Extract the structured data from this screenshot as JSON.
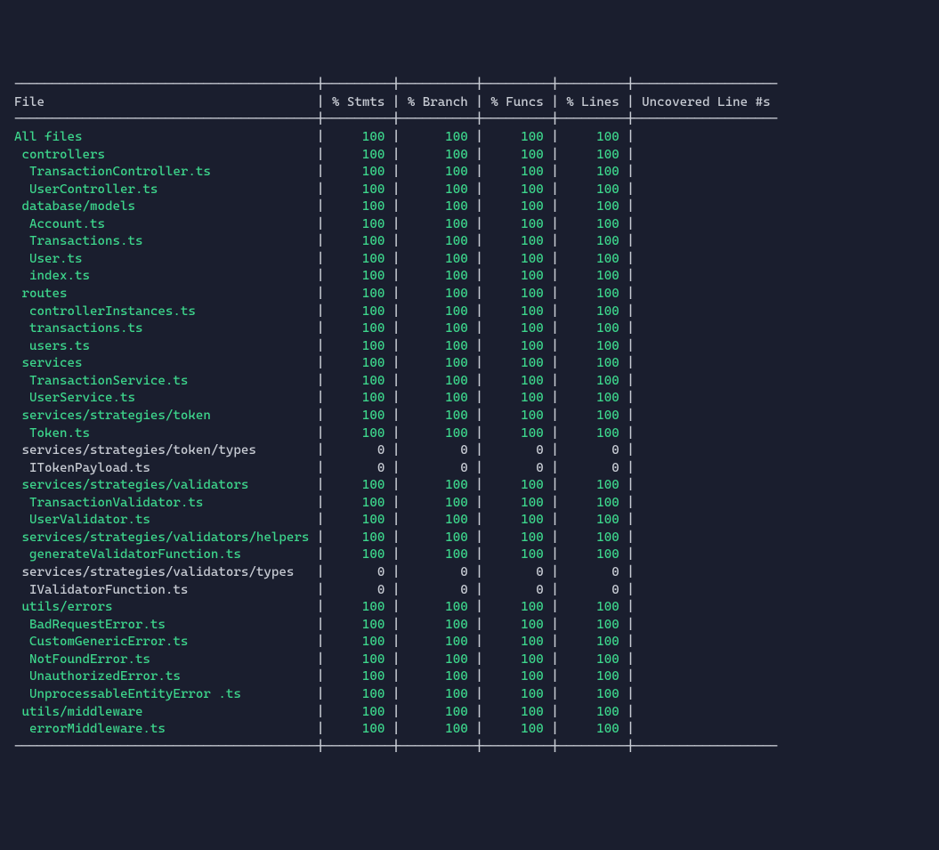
{
  "colors": {
    "background": "#1a1e2e",
    "text": "#c8ccd4",
    "highlight": "#3dd68c"
  },
  "layout": {
    "col_file_width": 40,
    "col_stmts_width": 9,
    "col_branch_width": 10,
    "col_funcs_width": 9,
    "col_lines_width": 9,
    "col_uncovered_width": 19
  },
  "headers": {
    "file": "File",
    "stmts": "% Stmts",
    "branch": "% Branch",
    "funcs": "% Funcs",
    "lines": "% Lines",
    "uncovered": "Uncovered Line #s"
  },
  "rows": [
    {
      "indent": 0,
      "file": "All files",
      "stmts": "100",
      "branch": "100",
      "funcs": "100",
      "lines": "100",
      "color": "green"
    },
    {
      "indent": 1,
      "file": "controllers",
      "stmts": "100",
      "branch": "100",
      "funcs": "100",
      "lines": "100",
      "color": "green"
    },
    {
      "indent": 2,
      "file": "TransactionController.ts",
      "stmts": "100",
      "branch": "100",
      "funcs": "100",
      "lines": "100",
      "color": "green"
    },
    {
      "indent": 2,
      "file": "UserController.ts",
      "stmts": "100",
      "branch": "100",
      "funcs": "100",
      "lines": "100",
      "color": "green"
    },
    {
      "indent": 1,
      "file": "database/models",
      "stmts": "100",
      "branch": "100",
      "funcs": "100",
      "lines": "100",
      "color": "green"
    },
    {
      "indent": 2,
      "file": "Account.ts",
      "stmts": "100",
      "branch": "100",
      "funcs": "100",
      "lines": "100",
      "color": "green"
    },
    {
      "indent": 2,
      "file": "Transactions.ts",
      "stmts": "100",
      "branch": "100",
      "funcs": "100",
      "lines": "100",
      "color": "green"
    },
    {
      "indent": 2,
      "file": "User.ts",
      "stmts": "100",
      "branch": "100",
      "funcs": "100",
      "lines": "100",
      "color": "green"
    },
    {
      "indent": 2,
      "file": "index.ts",
      "stmts": "100",
      "branch": "100",
      "funcs": "100",
      "lines": "100",
      "color": "green"
    },
    {
      "indent": 1,
      "file": "routes",
      "stmts": "100",
      "branch": "100",
      "funcs": "100",
      "lines": "100",
      "color": "green"
    },
    {
      "indent": 2,
      "file": "controllerInstances.ts",
      "stmts": "100",
      "branch": "100",
      "funcs": "100",
      "lines": "100",
      "color": "green"
    },
    {
      "indent": 2,
      "file": "transactions.ts",
      "stmts": "100",
      "branch": "100",
      "funcs": "100",
      "lines": "100",
      "color": "green"
    },
    {
      "indent": 2,
      "file": "users.ts",
      "stmts": "100",
      "branch": "100",
      "funcs": "100",
      "lines": "100",
      "color": "green"
    },
    {
      "indent": 1,
      "file": "services",
      "stmts": "100",
      "branch": "100",
      "funcs": "100",
      "lines": "100",
      "color": "green"
    },
    {
      "indent": 2,
      "file": "TransactionService.ts",
      "stmts": "100",
      "branch": "100",
      "funcs": "100",
      "lines": "100",
      "color": "green"
    },
    {
      "indent": 2,
      "file": "UserService.ts",
      "stmts": "100",
      "branch": "100",
      "funcs": "100",
      "lines": "100",
      "color": "green"
    },
    {
      "indent": 1,
      "file": "services/strategies/token",
      "stmts": "100",
      "branch": "100",
      "funcs": "100",
      "lines": "100",
      "color": "green"
    },
    {
      "indent": 2,
      "file": "Token.ts",
      "stmts": "100",
      "branch": "100",
      "funcs": "100",
      "lines": "100",
      "color": "green"
    },
    {
      "indent": 1,
      "file": "services/strategies/token/types",
      "stmts": "0",
      "branch": "0",
      "funcs": "0",
      "lines": "0",
      "color": "white"
    },
    {
      "indent": 2,
      "file": "ITokenPayload.ts",
      "stmts": "0",
      "branch": "0",
      "funcs": "0",
      "lines": "0",
      "color": "white"
    },
    {
      "indent": 1,
      "file": "services/strategies/validators",
      "stmts": "100",
      "branch": "100",
      "funcs": "100",
      "lines": "100",
      "color": "green"
    },
    {
      "indent": 2,
      "file": "TransactionValidator.ts",
      "stmts": "100",
      "branch": "100",
      "funcs": "100",
      "lines": "100",
      "color": "green"
    },
    {
      "indent": 2,
      "file": "UserValidator.ts",
      "stmts": "100",
      "branch": "100",
      "funcs": "100",
      "lines": "100",
      "color": "green"
    },
    {
      "indent": 1,
      "file": "services/strategies/validators/helpers",
      "stmts": "100",
      "branch": "100",
      "funcs": "100",
      "lines": "100",
      "color": "green"
    },
    {
      "indent": 2,
      "file": "generateValidatorFunction.ts",
      "stmts": "100",
      "branch": "100",
      "funcs": "100",
      "lines": "100",
      "color": "green"
    },
    {
      "indent": 1,
      "file": "services/strategies/validators/types",
      "stmts": "0",
      "branch": "0",
      "funcs": "0",
      "lines": "0",
      "color": "white"
    },
    {
      "indent": 2,
      "file": "IValidatorFunction.ts",
      "stmts": "0",
      "branch": "0",
      "funcs": "0",
      "lines": "0",
      "color": "white"
    },
    {
      "indent": 1,
      "file": "utils/errors",
      "stmts": "100",
      "branch": "100",
      "funcs": "100",
      "lines": "100",
      "color": "green"
    },
    {
      "indent": 2,
      "file": "BadRequestError.ts",
      "stmts": "100",
      "branch": "100",
      "funcs": "100",
      "lines": "100",
      "color": "green"
    },
    {
      "indent": 2,
      "file": "CustomGenericError.ts",
      "stmts": "100",
      "branch": "100",
      "funcs": "100",
      "lines": "100",
      "color": "green"
    },
    {
      "indent": 2,
      "file": "NotFoundError.ts",
      "stmts": "100",
      "branch": "100",
      "funcs": "100",
      "lines": "100",
      "color": "green"
    },
    {
      "indent": 2,
      "file": "UnauthorizedError.ts",
      "stmts": "100",
      "branch": "100",
      "funcs": "100",
      "lines": "100",
      "color": "green"
    },
    {
      "indent": 2,
      "file": "UnprocessableEntityError .ts",
      "stmts": "100",
      "branch": "100",
      "funcs": "100",
      "lines": "100",
      "color": "green"
    },
    {
      "indent": 1,
      "file": "utils/middleware",
      "stmts": "100",
      "branch": "100",
      "funcs": "100",
      "lines": "100",
      "color": "green"
    },
    {
      "indent": 2,
      "file": "errorMiddleware.ts",
      "stmts": "100",
      "branch": "100",
      "funcs": "100",
      "lines": "100",
      "color": "green"
    }
  ]
}
